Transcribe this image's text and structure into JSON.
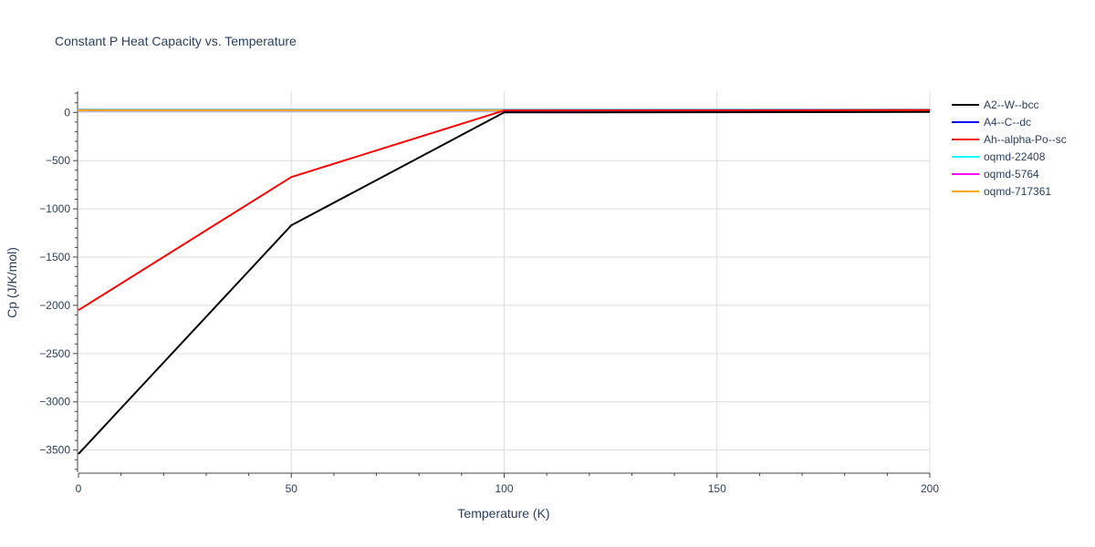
{
  "chart_data": {
    "type": "line",
    "title": "Constant P Heat Capacity vs. Temperature",
    "xlabel": "Temperature (K)",
    "ylabel": "Cp (J/K/mol)",
    "xlim": [
      0,
      200
    ],
    "ylim": [
      -3730,
      220
    ],
    "x_ticks": [
      0,
      50,
      100,
      150,
      200
    ],
    "x_tick_labels": [
      "0",
      "50",
      "100",
      "150",
      "200"
    ],
    "y_ticks": [
      0,
      -500,
      -1000,
      -1500,
      -2000,
      -2500,
      -3000,
      -3500
    ],
    "y_tick_labels": [
      "0",
      "−500",
      "−1000",
      "−1500",
      "−2000",
      "−2500",
      "−3000",
      "−3500"
    ],
    "grid": true,
    "legend_position": "right",
    "series": [
      {
        "name": "A2--W--bcc",
        "color": "#000000",
        "x": [
          0,
          50,
          100,
          150,
          200
        ],
        "y": [
          -3540,
          -1170,
          0,
          2,
          5
        ]
      },
      {
        "name": "A4--C--dc",
        "color": "#0000ff",
        "x": [
          0,
          50,
          100,
          150,
          200
        ],
        "y": [
          20,
          20,
          20,
          20,
          20
        ]
      },
      {
        "name": "Ah--alpha-Po--sc",
        "color": "#ff0000",
        "x": [
          0,
          50,
          100,
          150,
          200
        ],
        "y": [
          -2050,
          -670,
          20,
          22,
          25
        ]
      },
      {
        "name": "oqmd-22408",
        "color": "#00ffff",
        "x": [
          0,
          50,
          100,
          150,
          200
        ],
        "y": [
          28,
          28,
          28,
          28,
          28
        ]
      },
      {
        "name": "oqmd-5764",
        "color": "#ff00ff",
        "x": [
          0,
          50,
          100,
          150,
          200
        ],
        "y": [
          24,
          24,
          24,
          24,
          24
        ]
      },
      {
        "name": "oqmd-717361",
        "color": "#ffa500",
        "x": [
          0,
          50,
          100,
          150,
          200
        ],
        "y": [
          22,
          22,
          22,
          22,
          22
        ]
      }
    ]
  }
}
